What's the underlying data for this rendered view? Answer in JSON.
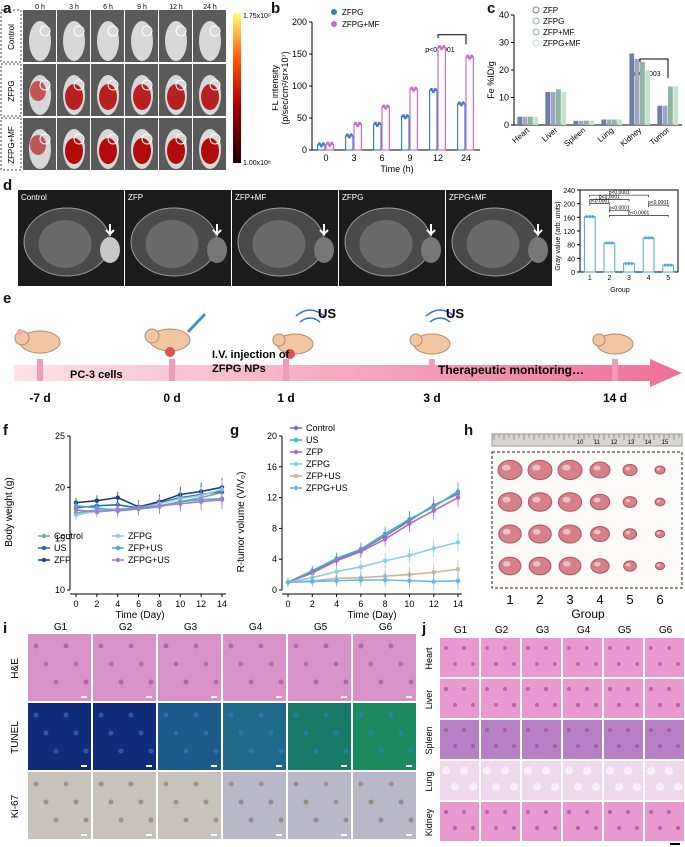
{
  "panel_letters": {
    "a": "a",
    "b": "b",
    "c": "c",
    "d": "d",
    "e": "e",
    "f": "f",
    "g": "g",
    "h": "h",
    "i": "i",
    "j": "j"
  },
  "panel_a": {
    "times": [
      "0 h",
      "3 h",
      "6 h",
      "9 h",
      "12 h",
      "24 h"
    ],
    "rows": [
      "Control",
      "ZFPG",
      "ZFPG+MF"
    ],
    "scale_max": "1.75x10⁹",
    "scale_min": "1.00x10⁸"
  },
  "chart_b": {
    "type": "bar",
    "categories": [
      "0",
      "3",
      "6",
      "9",
      "12",
      "24"
    ],
    "series": [
      {
        "name": "ZFPG",
        "values": [
          8,
          22,
          40,
          52,
          93,
          72
        ],
        "color": "#3b7fc4"
      },
      {
        "name": "ZFPG+MF",
        "values": [
          9,
          40,
          67,
          95,
          160,
          145
        ],
        "color": "#c86cc8"
      }
    ],
    "ylim": [
      0,
      200
    ],
    "yticks": [
      "0",
      "50",
      "100",
      "150",
      "200"
    ],
    "xlabel": "Time (h)",
    "ylabel_1": "FL intensity",
    "ylabel_2": "(p/sec/cm²/sr×10⁷)",
    "annotation": "p<0.0001"
  },
  "chart_c": {
    "type": "bar",
    "categories": [
      "Heart",
      "Liver",
      "Spleen",
      "Lung",
      "Kidney",
      "Tumor"
    ],
    "series": [
      {
        "name": "ZFP",
        "values": [
          3,
          12,
          1.5,
          2,
          26,
          7
        ],
        "color": "#6d7fa6"
      },
      {
        "name": "ZFPG",
        "values": [
          3,
          12,
          1.5,
          2,
          24,
          7
        ],
        "color": "#9da7bd"
      },
      {
        "name": "ZFP+MF",
        "values": [
          3,
          13,
          1.6,
          2,
          23,
          14
        ],
        "color": "#8fb4a4"
      },
      {
        "name": "ZFPG+MF",
        "values": [
          3,
          12,
          1.6,
          2,
          20,
          14
        ],
        "color": "#c4e2cb"
      }
    ],
    "ylim": [
      0,
      40
    ],
    "yticks": [
      "0",
      "10",
      "20",
      "30",
      "40"
    ],
    "ylabel": "Fe %ID/g",
    "annotation": "p=0.0003"
  },
  "panel_d": {
    "images": [
      "Control",
      "ZFP",
      "ZFP+MF",
      "ZFPG",
      "ZFPG+MF"
    ],
    "chart": {
      "type": "bar",
      "categories": [
        "1",
        "2",
        "3",
        "4",
        "5"
      ],
      "values": [
        162,
        85,
        25,
        100,
        20
      ],
      "ylim": [
        0,
        240
      ],
      "yticks": [
        "0",
        "40",
        "80",
        "120",
        "160",
        "200",
        "240"
      ],
      "ylabel": "Gray value (arb. units)",
      "xlabel": "Group",
      "pvals": [
        "p<0.0001",
        "p<0.0001",
        "p<0.0001",
        "p<0.0001",
        "p<0.0001",
        "p<0.0001"
      ],
      "color": "#4aa9d8"
    }
  },
  "panel_e": {
    "us1": "US",
    "us2": "US",
    "cells": "PC-3 cells",
    "inject_1": "I.V. injection of",
    "inject_2": "ZFPG NPs",
    "monitor": "Therapeutic monitoring…",
    "days": [
      "-7 d",
      "0 d",
      "1 d",
      "3 d",
      "14 d"
    ]
  },
  "chart_f": {
    "type": "line",
    "x": [
      0,
      2,
      4,
      6,
      8,
      10,
      12,
      14
    ],
    "series": [
      {
        "name": "Control",
        "values": [
          17.5,
          17.8,
          17.9,
          18.0,
          18.2,
          18.6,
          19.0,
          19.5
        ],
        "color": "#7aa9a0"
      },
      {
        "name": "US",
        "values": [
          18.0,
          18.2,
          18.3,
          18.0,
          18.5,
          19.0,
          19.3,
          19.6
        ],
        "color": "#2d6db3"
      },
      {
        "name": "ZFP",
        "values": [
          18.5,
          18.7,
          19.0,
          18.1,
          18.6,
          19.3,
          19.6,
          20.0
        ],
        "color": "#1c3f80"
      },
      {
        "name": "ZFPG",
        "values": [
          17.3,
          17.7,
          17.9,
          18.0,
          18.4,
          18.9,
          19.2,
          19.8
        ],
        "color": "#90cde0"
      },
      {
        "name": "ZFP+US",
        "values": [
          18.2,
          18.0,
          17.7,
          17.9,
          18.1,
          18.6,
          18.8,
          18.9
        ],
        "color": "#5aa6c8"
      },
      {
        "name": "ZFPG+US",
        "values": [
          17.8,
          17.6,
          17.8,
          18.0,
          18.2,
          18.4,
          18.6,
          18.8
        ],
        "color": "#a57cc8"
      }
    ],
    "ylim": [
      10,
      25
    ],
    "yticks": [
      "10",
      "15",
      "20",
      "25"
    ],
    "xticks": [
      "0",
      "2",
      "4",
      "6",
      "8",
      "10",
      "12",
      "14"
    ],
    "xlabel": "Time (Day)",
    "ylabel": "Body weight (g)"
  },
  "chart_g": {
    "type": "line",
    "x": [
      0,
      2,
      4,
      6,
      8,
      10,
      12,
      14
    ],
    "series": [
      {
        "name": "Control",
        "values": [
          1,
          2.4,
          4.0,
          5.2,
          7.0,
          9.0,
          11.0,
          12.5
        ],
        "color": "#8a6fa8"
      },
      {
        "name": "US",
        "values": [
          1,
          2.5,
          4.1,
          5.3,
          7.3,
          9.2,
          10.8,
          12.8
        ],
        "color": "#3ab4c6"
      },
      {
        "name": "ZFP",
        "values": [
          1,
          2.2,
          3.8,
          5.0,
          6.6,
          8.6,
          10.3,
          12.0
        ],
        "color": "#a96cc8"
      },
      {
        "name": "ZFPG",
        "values": [
          1,
          1.6,
          2.4,
          3.0,
          3.8,
          4.5,
          5.4,
          6.2
        ],
        "color": "#86d0e2"
      },
      {
        "name": "ZFP+US",
        "values": [
          1,
          1.2,
          1.5,
          1.6,
          1.8,
          2.0,
          2.3,
          2.7
        ],
        "color": "#c9b6a0"
      },
      {
        "name": "ZFPG+US",
        "values": [
          1,
          1.1,
          1.2,
          1.3,
          1.3,
          1.2,
          1.1,
          1.2
        ],
        "color": "#68b4e8"
      }
    ],
    "ylim": [
      0,
      20
    ],
    "yticks": [
      "0",
      "4",
      "8",
      "12",
      "16",
      "20"
    ],
    "xticks": [
      "0",
      "2",
      "4",
      "6",
      "8",
      "10",
      "12",
      "14"
    ],
    "xlabel": "Time (Day)",
    "ylabel": "R-tumor volume (V/V₀)"
  },
  "panel_h": {
    "groups": [
      "1",
      "2",
      "3",
      "4",
      "5",
      "6"
    ],
    "xlabel": "Group",
    "ruler": [
      "10",
      "11",
      "12",
      "13",
      "14",
      "15"
    ]
  },
  "panel_i": {
    "cols": [
      "G1",
      "G2",
      "G3",
      "G4",
      "G5",
      "G6"
    ],
    "rows": [
      "H&E",
      "TUNEL",
      "Ki-67"
    ]
  },
  "panel_j": {
    "cols": [
      "G1",
      "G2",
      "G3",
      "G4",
      "G5",
      "G6"
    ],
    "rows": [
      "Heart",
      "Liver",
      "Spleen",
      "Lung",
      "Kidney"
    ]
  }
}
